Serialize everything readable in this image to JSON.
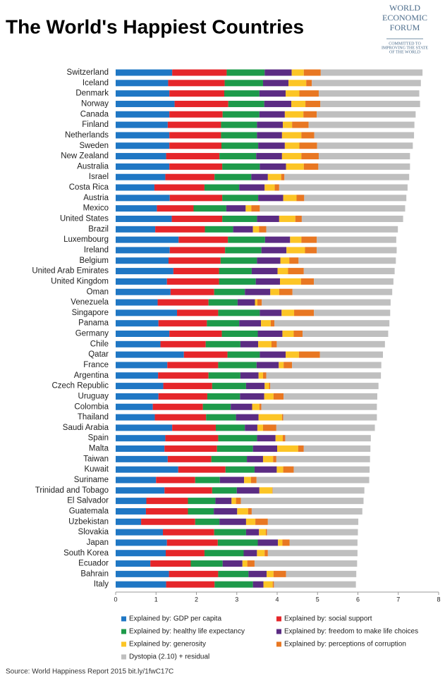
{
  "chart_data": {
    "type": "stacked-barh",
    "title": "The World's Happiest Countries",
    "logo": {
      "lines": [
        "WORLD",
        "ECONOMIC",
        "FORUM"
      ],
      "tagline": [
        "COMMITTED TO",
        "IMPROVING THE STATE",
        "OF THE WORLD"
      ]
    },
    "source": "Source:  World Happiness Report 2015 bit.ly/1fwC17C",
    "categories": [
      "Switzerland",
      "Iceland",
      "Denmark",
      "Norway",
      "Canada",
      "Finland",
      "Netherlands",
      "Sweden",
      "New Zealand",
      "Australia",
      "Israel",
      "Costa Rica",
      "Austria",
      "Mexico",
      "United States",
      "Brazil",
      "Luxembourg",
      "Ireland",
      "Belgium",
      "United Arab Emirates",
      "United Kingdom",
      "Oman",
      "Venezuela",
      "Singapore",
      "Panama",
      "Germany",
      "Chile",
      "Qatar",
      "France",
      "Argentina",
      "Czech Republic",
      "Uruguay",
      "Colombia",
      "Thailand",
      "Saudi Arabia",
      "Spain",
      "Malta",
      "Taiwan",
      "Kuwait",
      "Suriname",
      "Trinidad and Tobago",
      "El Salvador",
      "Guatemala",
      "Uzbekistan",
      "Slovakia",
      "Japan",
      "South Korea",
      "Ecuador",
      "Bahrain",
      "Italy"
    ],
    "series": [
      {
        "name": "Explained by: GDP per capita",
        "color": "#1f77c4",
        "values": [
          1.4,
          1.3,
          1.33,
          1.46,
          1.33,
          1.29,
          1.33,
          1.33,
          1.25,
          1.33,
          1.23,
          0.96,
          1.34,
          1.02,
          1.39,
          0.98,
          1.56,
          1.34,
          1.31,
          1.43,
          1.27,
          1.36,
          1.04,
          1.52,
          1.06,
          1.33,
          1.11,
          1.69,
          1.28,
          1.05,
          1.18,
          1.06,
          0.92,
          0.97,
          1.4,
          1.23,
          1.21,
          1.29,
          1.55,
          1.0,
          1.21,
          0.76,
          0.75,
          0.63,
          1.17,
          1.27,
          1.24,
          0.86,
          1.32,
          1.25
        ]
      },
      {
        "name": "Explained by: social support",
        "color": "#e5262a",
        "values": [
          1.35,
          1.4,
          1.36,
          1.33,
          1.32,
          1.32,
          1.28,
          1.29,
          1.32,
          1.31,
          1.22,
          1.24,
          1.3,
          0.91,
          1.25,
          1.23,
          1.22,
          1.37,
          1.29,
          1.13,
          1.29,
          1.08,
          1.26,
          1.02,
          1.2,
          1.3,
          1.12,
          1.08,
          1.26,
          1.25,
          1.21,
          1.21,
          1.24,
          1.27,
          1.08,
          1.31,
          1.3,
          1.08,
          1.17,
          0.97,
          1.18,
          1.03,
          1.04,
          1.34,
          1.27,
          1.26,
          0.96,
          1.0,
          1.22,
          1.2
        ]
      },
      {
        "name": "Explained by: healthy life expectancy",
        "color": "#1e9a4a",
        "values": [
          0.94,
          0.95,
          0.87,
          0.89,
          0.91,
          0.89,
          0.89,
          0.91,
          0.91,
          0.93,
          0.91,
          0.86,
          0.89,
          0.81,
          0.86,
          0.7,
          0.92,
          0.9,
          0.9,
          0.81,
          0.91,
          0.76,
          0.72,
          1.03,
          0.8,
          0.89,
          0.86,
          0.8,
          0.95,
          0.79,
          0.84,
          0.81,
          0.69,
          0.74,
          0.72,
          0.96,
          0.89,
          0.88,
          0.72,
          0.61,
          0.61,
          0.68,
          0.64,
          0.6,
          0.79,
          0.99,
          0.97,
          0.79,
          0.75,
          0.95
        ]
      },
      {
        "name": "Explained by: freedom to make life choices",
        "color": "#5b2c83",
        "values": [
          0.67,
          0.63,
          0.65,
          0.67,
          0.63,
          0.64,
          0.62,
          0.66,
          0.64,
          0.65,
          0.41,
          0.63,
          0.62,
          0.48,
          0.55,
          0.49,
          0.62,
          0.62,
          0.58,
          0.64,
          0.6,
          0.63,
          0.43,
          0.54,
          0.54,
          0.61,
          0.44,
          0.64,
          0.55,
          0.45,
          0.46,
          0.6,
          0.53,
          0.56,
          0.31,
          0.46,
          0.6,
          0.4,
          0.55,
          0.6,
          0.56,
          0.4,
          0.58,
          0.66,
          0.32,
          0.5,
          0.33,
          0.49,
          0.45,
          0.26
        ]
      },
      {
        "name": "Explained by: generosity",
        "color": "#fcc526",
        "values": [
          0.3,
          0.44,
          0.34,
          0.35,
          0.46,
          0.23,
          0.48,
          0.36,
          0.48,
          0.44,
          0.33,
          0.25,
          0.33,
          0.14,
          0.4,
          0.15,
          0.28,
          0.46,
          0.22,
          0.26,
          0.52,
          0.22,
          0.06,
          0.31,
          0.24,
          0.28,
          0.33,
          0.33,
          0.12,
          0.11,
          0.11,
          0.23,
          0.18,
          0.58,
          0.14,
          0.18,
          0.52,
          0.25,
          0.16,
          0.17,
          0.32,
          0.11,
          0.27,
          0.23,
          0.17,
          0.11,
          0.19,
          0.12,
          0.17,
          0.23
        ]
      },
      {
        "name": "Explained by: perceptions of corruption",
        "color": "#e87722",
        "values": [
          0.42,
          0.14,
          0.48,
          0.37,
          0.33,
          0.41,
          0.32,
          0.44,
          0.43,
          0.36,
          0.08,
          0.11,
          0.19,
          0.21,
          0.16,
          0.18,
          0.38,
          0.29,
          0.23,
          0.39,
          0.32,
          0.33,
          0.11,
          0.49,
          0.09,
          0.22,
          0.13,
          0.52,
          0.21,
          0.08,
          0.03,
          0.25,
          0.05,
          0.03,
          0.33,
          0.06,
          0.14,
          0.08,
          0.26,
          0.14,
          0.01,
          0.12,
          0.09,
          0.31,
          0.03,
          0.18,
          0.08,
          0.18,
          0.31,
          0.03
        ]
      },
      {
        "name": "Dystopia (2.10) + residual",
        "color": "#bfbfbf",
        "values": [
          2.52,
          2.7,
          2.49,
          2.47,
          2.45,
          2.62,
          2.47,
          2.37,
          2.26,
          2.27,
          3.09,
          3.18,
          2.53,
          3.6,
          2.51,
          3.26,
          1.97,
          1.98,
          2.41,
          2.25,
          1.97,
          2.47,
          3.19,
          1.89,
          2.85,
          2.12,
          2.68,
          1.56,
          2.21,
          2.84,
          2.68,
          2.32,
          2.86,
          2.32,
          2.44,
          2.12,
          1.65,
          2.32,
          1.88,
          2.79,
          2.27,
          3.04,
          2.74,
          2.24,
          2.25,
          1.68,
          2.22,
          2.54,
          1.74,
          2.03
        ]
      }
    ],
    "xlim": [
      0,
      8
    ],
    "xticks": [
      0,
      1,
      2,
      3,
      4,
      5,
      6,
      7,
      8
    ]
  }
}
